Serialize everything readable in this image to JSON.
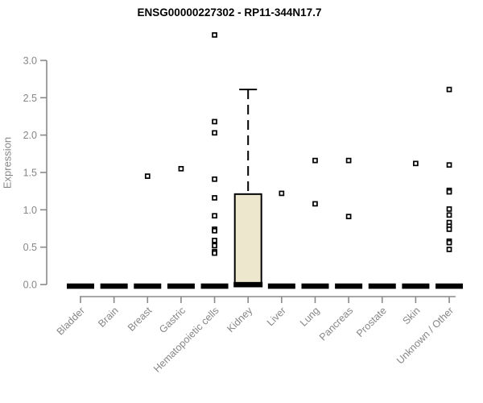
{
  "chart_data": {
    "type": "boxplot",
    "title": "ENSG00000227302 - RP11-344N17.7",
    "ylabel": "Expression",
    "xlabel": "",
    "ylim": [
      0,
      3.35
    ],
    "grid": false,
    "legend": "none",
    "yticks": [
      "0.0",
      "0.5",
      "1.0",
      "1.5",
      "2.0",
      "2.5",
      "3.0"
    ],
    "ytick_values": [
      0,
      0.5,
      1.0,
      1.5,
      2.0,
      2.5,
      3.0
    ],
    "categories": [
      "Bladder",
      "Brain",
      "Breast",
      "Gastric",
      "Hematopoietic cells",
      "Kidney",
      "Liver",
      "Lung",
      "Pancreas",
      "Prostate",
      "Skin",
      "Unknown / Other"
    ],
    "boxes": [
      {
        "category": "Bladder",
        "median": 0,
        "q1": 0,
        "q3": 0,
        "whisker_low": 0,
        "whisker_high": 0,
        "outliers": []
      },
      {
        "category": "Brain",
        "median": 0,
        "q1": 0,
        "q3": 0,
        "whisker_low": 0,
        "whisker_high": 0,
        "outliers": []
      },
      {
        "category": "Breast",
        "median": 0,
        "q1": 0,
        "q3": 0,
        "whisker_low": 0,
        "whisker_high": 0,
        "outliers": [
          1.45
        ]
      },
      {
        "category": "Gastric",
        "median": 0,
        "q1": 0,
        "q3": 0,
        "whisker_low": 0,
        "whisker_high": 0,
        "outliers": [
          1.55
        ]
      },
      {
        "category": "Hematopoietic cells",
        "median": 0,
        "q1": 0,
        "q3": 0,
        "whisker_low": 0,
        "whisker_high": 0,
        "outliers": [
          3.34,
          2.18,
          2.03,
          1.41,
          1.16,
          0.92,
          0.74,
          0.72,
          0.59,
          0.52,
          0.44,
          0.42
        ]
      },
      {
        "category": "Kidney",
        "median": 0.02,
        "q1": 0.01,
        "q3": 1.21,
        "whisker_low": 0.01,
        "whisker_high": 2.61,
        "outliers": []
      },
      {
        "category": "Liver",
        "median": 0,
        "q1": 0,
        "q3": 0,
        "whisker_low": 0,
        "whisker_high": 0,
        "outliers": [
          1.22
        ]
      },
      {
        "category": "Lung",
        "median": 0,
        "q1": 0,
        "q3": 0,
        "whisker_low": 0,
        "whisker_high": 0,
        "outliers": [
          1.66,
          1.08
        ]
      },
      {
        "category": "Pancreas",
        "median": 0,
        "q1": 0,
        "q3": 0,
        "whisker_low": 0,
        "whisker_high": 0,
        "outliers": [
          1.66,
          0.91
        ]
      },
      {
        "category": "Prostate",
        "median": 0,
        "q1": 0,
        "q3": 0,
        "whisker_low": 0,
        "whisker_high": 0,
        "outliers": []
      },
      {
        "category": "Skin",
        "median": 0,
        "q1": 0,
        "q3": 0,
        "whisker_low": 0,
        "whisker_high": 0,
        "outliers": [
          1.62
        ]
      },
      {
        "category": "Unknown / Other",
        "median": 0,
        "q1": 0,
        "q3": 0,
        "whisker_low": 0,
        "whisker_high": 0,
        "outliers": [
          2.61,
          1.6,
          1.26,
          1.24,
          1.01,
          0.93,
          0.83,
          0.78,
          0.74,
          0.58,
          0.56,
          0.47
        ]
      }
    ],
    "colors": {
      "box_fill": "#ede8cd",
      "box_stroke": "#000000",
      "median": "#000000",
      "axis": "#8a8a8a",
      "tick_text": "#868686",
      "title_text": "#000000",
      "outlier_stroke": "#000000",
      "outlier_fill": "#ffffff"
    }
  }
}
